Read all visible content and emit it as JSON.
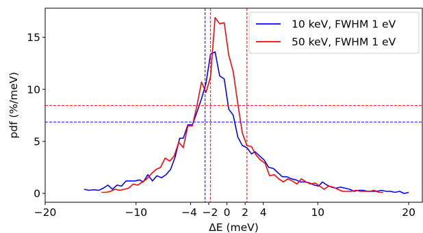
{
  "chart_data": {
    "type": "line",
    "title": "",
    "xlabel": "ΔE (meV)",
    "ylabel": "pdf (%/meV)",
    "xlim": [
      -20,
      21.5
    ],
    "ylim": [
      -0.85,
      17.8
    ],
    "xticks": [
      -20,
      -10,
      -4,
      -2,
      0,
      2,
      4,
      10,
      20
    ],
    "xtick_labels": [
      "−20",
      "−10",
      "−4",
      "−2",
      "0",
      "2",
      "4",
      "10",
      "20"
    ],
    "yticks": [
      0,
      5,
      10,
      15
    ],
    "ytick_labels": [
      "0",
      "5",
      "10",
      "15"
    ],
    "grid": false,
    "legend_position": "upper right",
    "series": [
      {
        "name": "10 keV, FWHM 1 eV",
        "color": "#0000ff",
        "x": [
          -15.7,
          -15.2,
          -14.6,
          -14.1,
          -13.6,
          -13.1,
          -12.6,
          -12.1,
          -11.6,
          -11.1,
          -10.6,
          -10.1,
          -9.6,
          -9.2,
          -8.7,
          -8.2,
          -7.7,
          -7.2,
          -6.7,
          -6.2,
          -5.7,
          -5.2,
          -4.8,
          -4.3,
          -3.8,
          -3.3,
          -2.8,
          -2.3,
          -1.8,
          -1.3,
          -0.8,
          -0.3,
          0.2,
          0.7,
          1.2,
          1.7,
          2.2,
          2.7,
          3.1,
          3.6,
          4.1,
          4.6,
          5.1,
          5.6,
          6.1,
          6.6,
          7.1,
          7.6,
          8.1,
          8.6,
          9.1,
          9.6,
          10.1,
          10.5,
          11.0,
          11.5,
          12.0,
          12.5,
          13.0,
          13.5,
          14.0,
          14.5,
          15.0,
          15.5,
          16.0,
          16.5,
          17.0,
          17.5,
          18.0,
          18.5,
          19.0,
          19.5,
          20.0
        ],
        "y": [
          0.4,
          0.3,
          0.35,
          0.3,
          0.5,
          0.8,
          0.4,
          0.8,
          0.7,
          1.2,
          1.2,
          1.2,
          1.3,
          1.1,
          1.8,
          1.2,
          1.7,
          1.5,
          1.8,
          2.3,
          3.5,
          5.3,
          5.3,
          6.6,
          6.6,
          7.8,
          9.1,
          10.6,
          13.4,
          13.6,
          11.3,
          11.0,
          8.1,
          7.5,
          5.4,
          4.6,
          4.4,
          3.8,
          4.0,
          3.6,
          3.2,
          2.5,
          2.4,
          2.0,
          1.6,
          1.6,
          1.4,
          1.3,
          1.1,
          1.1,
          1.0,
          0.8,
          0.7,
          1.1,
          0.8,
          0.6,
          0.5,
          0.6,
          0.5,
          0.4,
          0.2,
          0.3,
          0.3,
          0.2,
          0.2,
          0.2,
          0.3,
          0.2,
          0.2,
          0.1,
          0.2,
          0.0,
          0.1
        ]
      },
      {
        "name": "50 keV, FWHM 1 eV",
        "color": "#ff0000",
        "x": [
          -13.8,
          -13.3,
          -12.8,
          -12.3,
          -11.8,
          -11.3,
          -10.8,
          -10.3,
          -9.8,
          -9.3,
          -8.8,
          -8.3,
          -7.8,
          -7.3,
          -6.8,
          -6.3,
          -5.8,
          -5.3,
          -4.8,
          -4.3,
          -3.8,
          -3.3,
          -2.8,
          -2.3,
          -1.8,
          -1.3,
          -0.8,
          -0.3,
          0.2,
          0.7,
          1.2,
          1.7,
          2.2,
          2.7,
          3.2,
          3.7,
          4.2,
          4.7,
          5.2,
          5.7,
          6.2,
          6.7,
          7.2,
          7.7,
          8.2,
          8.7,
          9.2,
          9.7,
          10.2,
          10.7,
          11.2,
          11.7,
          12.2,
          12.7,
          13.2,
          13.7,
          14.2,
          14.7,
          15.2,
          15.7,
          16.2,
          16.7,
          17.2
        ],
        "y": [
          0.1,
          0.1,
          0.2,
          0.4,
          0.3,
          0.4,
          0.5,
          0.9,
          0.8,
          1.1,
          1.4,
          1.9,
          2.3,
          2.5,
          3.4,
          3.1,
          3.6,
          4.9,
          4.4,
          6.5,
          6.5,
          8.4,
          10.7,
          9.7,
          11.2,
          16.9,
          16.3,
          16.4,
          13.3,
          11.7,
          8.6,
          5.8,
          4.6,
          4.5,
          3.7,
          3.2,
          2.9,
          1.7,
          1.8,
          1.4,
          1.1,
          1.4,
          1.2,
          0.9,
          1.4,
          1.1,
          0.9,
          1.0,
          0.7,
          0.4,
          0.7,
          0.6,
          0.4,
          0.2,
          0.2,
          0.2,
          0.3,
          0.2,
          0.2,
          0.2,
          0.3,
          0.1,
          0.1
        ]
      }
    ],
    "reference_lines": [
      {
        "orientation": "vertical",
        "x": -2.4,
        "color": "#0000ff"
      },
      {
        "orientation": "vertical",
        "x": -1.8,
        "color": "#ff0000"
      },
      {
        "orientation": "vertical",
        "x": 2.2,
        "color": "#ff0000"
      },
      {
        "orientation": "horizontal",
        "y": 6.85,
        "color": "#0000ff"
      },
      {
        "orientation": "horizontal",
        "y": 8.45,
        "color": "#ff0000"
      }
    ]
  }
}
